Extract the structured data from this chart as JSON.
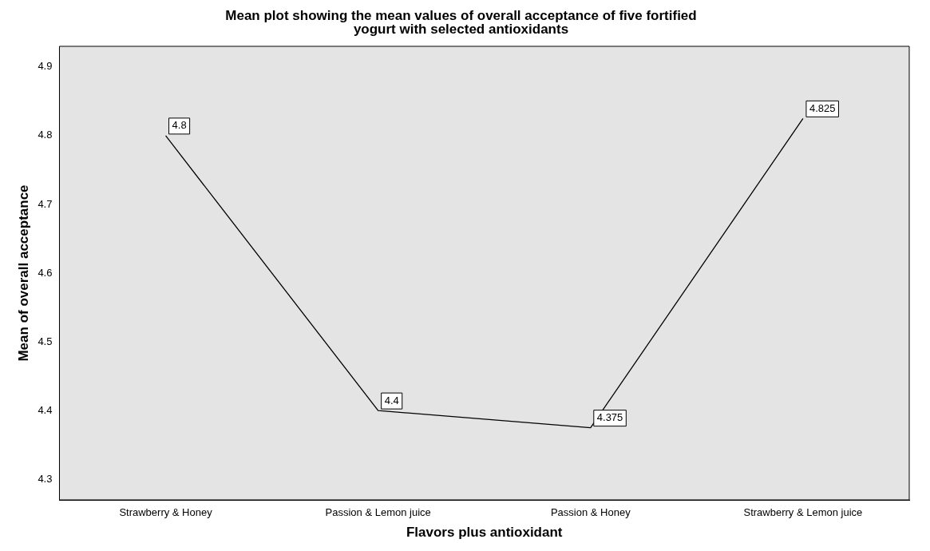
{
  "chart_data": {
    "type": "line",
    "title": "Mean plot showing the mean values of overall acceptance of five fortified yogurt with selected antioxidants",
    "xlabel": "Flavors plus antioxidant",
    "ylabel": "Mean of overall acceptance",
    "categories": [
      "Strawberry & Honey",
      "Passion & Lemon juice",
      "Passion & Honey",
      "Strawberry & Lemon juice"
    ],
    "series": [
      {
        "color": "#000000",
        "values": [
          4.8,
          4.4,
          4.375,
          4.825
        ]
      }
    ],
    "ylim": [
      4.27,
      4.93
    ],
    "yticks": [
      4.3,
      4.4,
      4.5,
      4.6,
      4.7,
      4.8,
      4.9
    ],
    "grid": false,
    "legend": false,
    "marker": "none",
    "line_style": "solid",
    "data_labels": true
  }
}
